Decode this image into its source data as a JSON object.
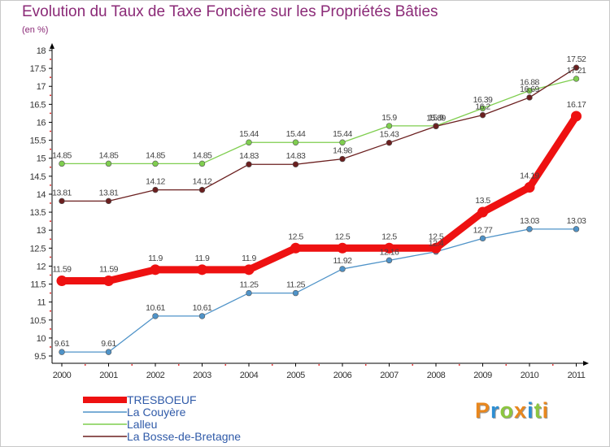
{
  "chart_data": {
    "type": "line",
    "title": "Evolution du Taux de Taxe Foncière sur les Propriétés Bâties",
    "subtitle": "(en %)",
    "categories": [
      "2000",
      "2001",
      "2002",
      "2003",
      "2004",
      "2005",
      "2006",
      "2007",
      "2008",
      "2009",
      "2010",
      "2011"
    ],
    "ylim": [
      9.5,
      18
    ],
    "yticks": [
      "9.5",
      "10",
      "10.5",
      "11",
      "11.5",
      "12",
      "12.5",
      "13",
      "13.5",
      "14",
      "14.5",
      "15",
      "15.5",
      "16",
      "16.5",
      "17",
      "17.5",
      "18"
    ],
    "grid": false,
    "legend_position": "bottom-left",
    "series": [
      {
        "name": "TRESBOEUF",
        "color": "#ee1111",
        "values": [
          11.59,
          11.59,
          11.9,
          11.9,
          11.9,
          12.5,
          12.5,
          12.5,
          12.5,
          13.5,
          14.19,
          16.17
        ],
        "labels": [
          "11.59",
          "11.59",
          "11.9",
          "11.9",
          "11.9",
          "12.5",
          "12.5",
          "12.5",
          "12.5",
          "13.5",
          "14.19",
          "16.17"
        ]
      },
      {
        "name": "La Couyère",
        "color": "#4f93c8",
        "values": [
          9.61,
          9.61,
          10.61,
          10.61,
          11.25,
          11.25,
          11.92,
          12.16,
          12.4,
          12.77,
          13.03,
          13.03
        ],
        "labels": [
          "9.61",
          "9.61",
          "10.61",
          "10.61",
          "11.25",
          "11.25",
          "11.92",
          "12.16",
          "12.4",
          "12.77",
          "13.03",
          "13.03"
        ]
      },
      {
        "name": "Lalleu",
        "color": "#7fce4f",
        "values": [
          14.85,
          14.85,
          14.85,
          14.85,
          15.44,
          15.44,
          15.44,
          15.9,
          15.9,
          16.39,
          16.88,
          17.21
        ],
        "labels": [
          "14.85",
          "14.85",
          "14.85",
          "14.85",
          "15.44",
          "15.44",
          "15.44",
          "15.9",
          "15.9",
          "16.39",
          "16.88",
          "17.21"
        ]
      },
      {
        "name": "La Bosse-de-Bretagne",
        "color": "#6b1f1f",
        "values": [
          13.81,
          13.81,
          14.12,
          14.12,
          14.83,
          14.83,
          14.98,
          15.43,
          15.89,
          16.2,
          16.69,
          17.52
        ],
        "labels": [
          "13.81",
          "13.81",
          "14.12",
          "14.12",
          "14.83",
          "14.83",
          "14.98",
          "15.43",
          "15.89",
          "16.2",
          "16.69",
          "17.52"
        ]
      }
    ]
  },
  "logo": {
    "letters": [
      "P",
      "r",
      "o",
      "x",
      "i",
      "t",
      "i"
    ],
    "colors": [
      "#e8871e",
      "#2d8fd4",
      "#8cc63f",
      "#e8871e",
      "#2d8fd4",
      "#8cc63f",
      "#e8871e"
    ]
  }
}
